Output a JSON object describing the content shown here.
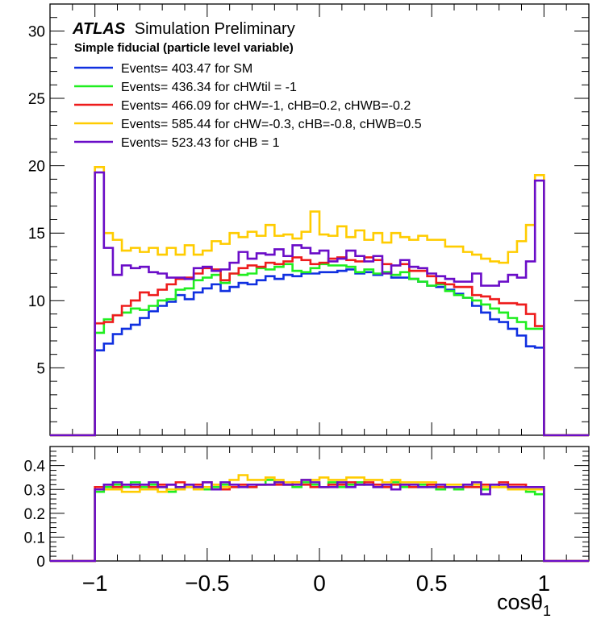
{
  "chart_data": [
    {
      "type": "line",
      "title_bold": "ATLAS",
      "title_rest": "Simulation Preliminary",
      "subtitle": "Simple fiducial (particle level variable)",
      "xlim": [
        -1.2,
        1.2
      ],
      "ylim": [
        0,
        32
      ],
      "y_ticks": [
        5,
        10,
        15,
        20,
        25,
        30
      ],
      "legend_position": "top-left",
      "x": [
        -0.98,
        -0.94,
        -0.9,
        -0.86,
        -0.82,
        -0.78,
        -0.74,
        -0.7,
        -0.66,
        -0.62,
        -0.58,
        -0.54,
        -0.5,
        -0.46,
        -0.42,
        -0.38,
        -0.34,
        -0.3,
        -0.26,
        -0.22,
        -0.18,
        -0.14,
        -0.1,
        -0.06,
        -0.02,
        0.02,
        0.06,
        0.1,
        0.14,
        0.18,
        0.22,
        0.26,
        0.3,
        0.34,
        0.38,
        0.42,
        0.46,
        0.5,
        0.54,
        0.58,
        0.62,
        0.66,
        0.7,
        0.74,
        0.78,
        0.82,
        0.86,
        0.9,
        0.94,
        0.98
      ],
      "series": [
        {
          "name": "Events= 403.47 for SM",
          "color": "#1030e0",
          "values": [
            6.3,
            6.8,
            7.5,
            7.9,
            8.2,
            8.7,
            9.2,
            9.6,
            9.9,
            10.4,
            10.1,
            10.6,
            10.9,
            11.2,
            10.7,
            11.0,
            11.3,
            11.2,
            11.5,
            11.8,
            11.6,
            11.9,
            11.8,
            12.0,
            12.0,
            12.1,
            12.1,
            12.2,
            12.3,
            12.0,
            12.1,
            11.9,
            12.1,
            11.7,
            11.7,
            11.6,
            11.4,
            11.1,
            11.0,
            10.8,
            10.5,
            10.2,
            9.6,
            9.1,
            8.6,
            8.4,
            7.9,
            7.4,
            6.6,
            6.5
          ]
        },
        {
          "name": "Events= 436.34 for cHWtil = -1",
          "color": "#20ee20",
          "values": [
            7.6,
            8.6,
            8.9,
            9.1,
            9.4,
            9.3,
            9.6,
            10.0,
            10.1,
            10.8,
            10.9,
            11.5,
            11.7,
            11.9,
            11.3,
            12.0,
            11.9,
            12.0,
            12.4,
            12.3,
            12.5,
            12.7,
            12.2,
            12.1,
            12.4,
            12.7,
            12.6,
            12.6,
            12.5,
            12.1,
            12.3,
            12.0,
            12.1,
            11.9,
            12.1,
            11.6,
            11.4,
            11.1,
            11.2,
            10.7,
            10.4,
            10.2,
            10.0,
            9.7,
            9.4,
            9.1,
            8.7,
            8.4,
            7.9,
            7.9
          ]
        },
        {
          "name": "Events= 466.09 for cHW=-1, cHB=0.2, cHWB=-0.2",
          "color": "#ee1c1c",
          "values": [
            8.3,
            8.4,
            8.9,
            9.6,
            10.0,
            10.6,
            10.4,
            10.8,
            11.2,
            11.6,
            11.7,
            12.0,
            12.4,
            12.3,
            11.5,
            12.0,
            12.4,
            12.6,
            12.5,
            12.8,
            12.7,
            12.9,
            13.2,
            13.0,
            12.7,
            12.8,
            13.1,
            13.2,
            13.0,
            12.9,
            13.2,
            13.0,
            12.7,
            12.6,
            12.7,
            12.2,
            12.2,
            11.8,
            11.3,
            11.2,
            11.0,
            11.0,
            10.4,
            10.3,
            10.1,
            9.8,
            9.8,
            9.7,
            9.0,
            8.1
          ]
        },
        {
          "name": "Events= 585.44 for cHW=-0.3, cHB=-0.8, cHWB=0.5",
          "color": "#ffcc00",
          "values": [
            19.9,
            15.0,
            14.5,
            13.7,
            13.9,
            13.6,
            13.9,
            13.4,
            13.9,
            13.4,
            14.1,
            13.4,
            13.7,
            14.4,
            14.2,
            15.0,
            14.7,
            15.1,
            14.8,
            15.6,
            14.8,
            14.9,
            14.6,
            15.1,
            16.6,
            14.9,
            14.8,
            15.5,
            14.7,
            15.2,
            14.5,
            15.0,
            14.3,
            15.0,
            14.7,
            14.5,
            14.8,
            14.5,
            14.5,
            14.0,
            14.0,
            13.6,
            13.4,
            13.1,
            12.9,
            12.8,
            13.6,
            14.4,
            15.6,
            19.3
          ]
        },
        {
          "name": "Events= 523.43 for cHB = 1",
          "color": "#6a0dc8",
          "values": [
            19.5,
            13.9,
            11.9,
            12.6,
            12.4,
            12.5,
            12.1,
            12.0,
            11.7,
            11.7,
            11.6,
            12.4,
            12.5,
            12.2,
            12.3,
            12.8,
            13.6,
            13.1,
            13.5,
            13.4,
            13.8,
            13.3,
            14.1,
            13.9,
            13.5,
            13.7,
            12.9,
            13.1,
            13.7,
            13.3,
            12.9,
            13.3,
            12.0,
            12.6,
            13.0,
            12.5,
            12.4,
            12.0,
            11.8,
            11.6,
            11.4,
            11.4,
            12.0,
            11.1,
            11.1,
            11.4,
            11.9,
            11.7,
            12.9,
            18.9
          ]
        }
      ]
    },
    {
      "type": "line",
      "xlim": [
        -1.2,
        1.2
      ],
      "ylim": [
        0,
        0.48
      ],
      "y_ticks": [
        "0",
        "0.1",
        "0.2",
        "0.3",
        "0.4"
      ],
      "x_ticks": [
        "−1",
        "−0.5",
        "0",
        "0.5",
        "1"
      ],
      "xlabel": "cosθ",
      "xlabel_sub": "1",
      "x": [
        -0.98,
        -0.94,
        -0.9,
        -0.86,
        -0.82,
        -0.78,
        -0.74,
        -0.7,
        -0.66,
        -0.62,
        -0.58,
        -0.54,
        -0.5,
        -0.46,
        -0.42,
        -0.38,
        -0.34,
        -0.3,
        -0.26,
        -0.22,
        -0.18,
        -0.14,
        -0.1,
        -0.06,
        -0.02,
        0.02,
        0.06,
        0.1,
        0.14,
        0.18,
        0.22,
        0.26,
        0.3,
        0.34,
        0.38,
        0.42,
        0.46,
        0.5,
        0.54,
        0.58,
        0.62,
        0.66,
        0.7,
        0.74,
        0.78,
        0.82,
        0.86,
        0.9,
        0.94,
        0.98
      ],
      "series": [
        {
          "color": "#20ee20",
          "values": [
            0.29,
            0.31,
            0.32,
            0.31,
            0.33,
            0.31,
            0.32,
            0.31,
            0.29,
            0.31,
            0.32,
            0.31,
            0.3,
            0.31,
            0.32,
            0.31,
            0.32,
            0.31,
            0.32,
            0.34,
            0.33,
            0.32,
            0.31,
            0.33,
            0.32,
            0.31,
            0.33,
            0.31,
            0.32,
            0.33,
            0.32,
            0.31,
            0.31,
            0.33,
            0.31,
            0.31,
            0.32,
            0.31,
            0.3,
            0.31,
            0.3,
            0.32,
            0.31,
            0.3,
            0.32,
            0.31,
            0.3,
            0.3,
            0.29,
            0.28
          ]
        },
        {
          "color": "#ee1c1c",
          "values": [
            0.31,
            0.32,
            0.31,
            0.32,
            0.31,
            0.32,
            0.31,
            0.32,
            0.32,
            0.33,
            0.31,
            0.32,
            0.33,
            0.32,
            0.3,
            0.31,
            0.32,
            0.31,
            0.32,
            0.32,
            0.32,
            0.32,
            0.33,
            0.32,
            0.31,
            0.31,
            0.32,
            0.32,
            0.33,
            0.32,
            0.33,
            0.32,
            0.31,
            0.32,
            0.32,
            0.31,
            0.31,
            0.32,
            0.31,
            0.31,
            0.31,
            0.31,
            0.31,
            0.32,
            0.31,
            0.33,
            0.32,
            0.32,
            0.31,
            0.31
          ]
        },
        {
          "color": "#ffcc00",
          "values": [
            0.3,
            0.3,
            0.3,
            0.29,
            0.29,
            0.3,
            0.3,
            0.29,
            0.3,
            0.3,
            0.31,
            0.3,
            0.31,
            0.32,
            0.31,
            0.34,
            0.36,
            0.34,
            0.34,
            0.35,
            0.34,
            0.33,
            0.33,
            0.34,
            0.34,
            0.35,
            0.34,
            0.34,
            0.35,
            0.35,
            0.34,
            0.34,
            0.33,
            0.34,
            0.33,
            0.33,
            0.33,
            0.33,
            0.32,
            0.32,
            0.32,
            0.32,
            0.32,
            0.31,
            0.31,
            0.31,
            0.3,
            0.3,
            0.3,
            0.3
          ]
        },
        {
          "color": "#6a0dc8",
          "values": [
            0.3,
            0.32,
            0.33,
            0.32,
            0.32,
            0.32,
            0.33,
            0.31,
            0.32,
            0.31,
            0.32,
            0.31,
            0.33,
            0.3,
            0.33,
            0.32,
            0.31,
            0.32,
            0.32,
            0.32,
            0.33,
            0.32,
            0.32,
            0.34,
            0.33,
            0.31,
            0.31,
            0.33,
            0.31,
            0.32,
            0.32,
            0.31,
            0.32,
            0.3,
            0.32,
            0.32,
            0.31,
            0.31,
            0.32,
            0.31,
            0.31,
            0.32,
            0.33,
            0.28,
            0.32,
            0.32,
            0.31,
            0.31,
            0.31,
            0.31
          ]
        }
      ]
    }
  ]
}
